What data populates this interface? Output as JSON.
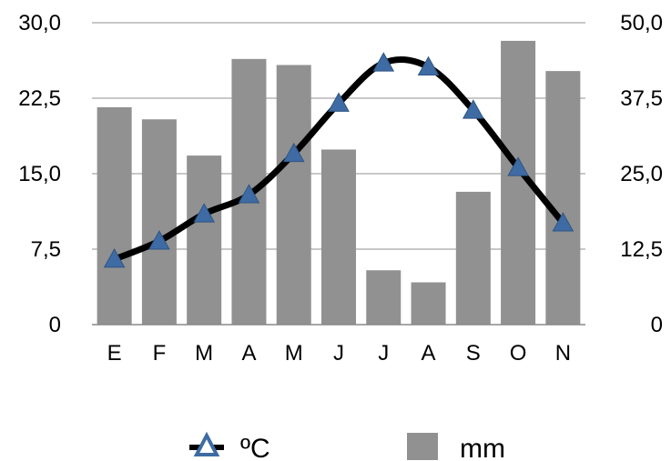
{
  "chart_data": {
    "type": "bar",
    "categories": [
      "E",
      "F",
      "M",
      "A",
      "M",
      "J",
      "J",
      "A",
      "S",
      "O",
      "N"
    ],
    "series": [
      {
        "name": "mm",
        "type": "bar",
        "axis": "right",
        "color": "#919191",
        "values": [
          36,
          34,
          28,
          44,
          43,
          29,
          9,
          7,
          22,
          47,
          42
        ]
      },
      {
        "name": "ºC",
        "type": "line",
        "axis": "left",
        "color": "#000000",
        "marker_color": "#3e6ba3",
        "values": [
          6.5,
          8.3,
          11.0,
          12.9,
          17.0,
          22.0,
          26.0,
          25.6,
          21.3,
          15.6,
          10.1
        ]
      }
    ],
    "y_left": {
      "ticks": [
        "0",
        "7,5",
        "15,0",
        "22,5",
        "30,0"
      ],
      "ylim": [
        0,
        30
      ]
    },
    "y_right": {
      "ticks": [
        "0",
        "12,5",
        "25,0",
        "37,5",
        "50,0"
      ],
      "ylim": [
        0,
        50
      ]
    },
    "grid": true,
    "legend": "bottom"
  }
}
